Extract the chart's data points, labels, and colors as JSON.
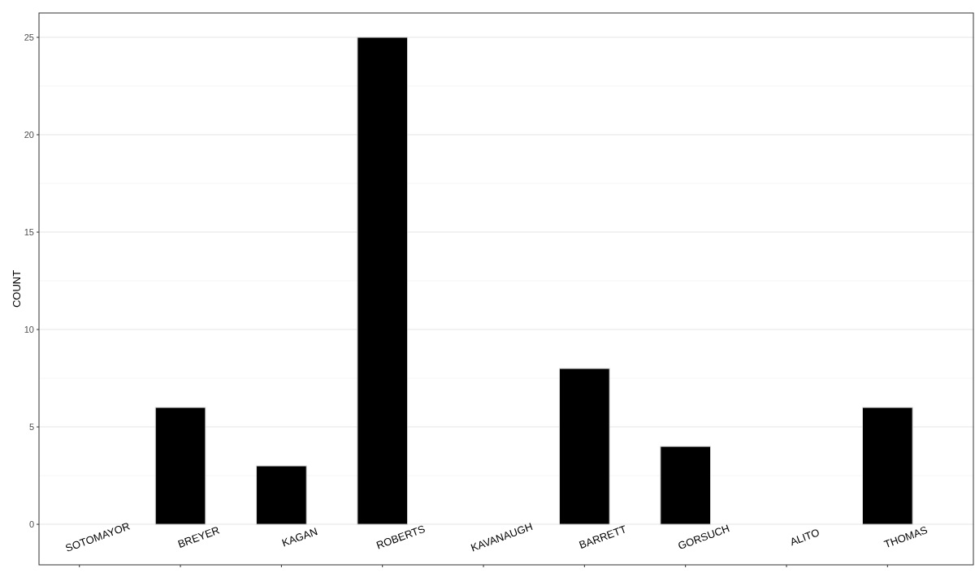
{
  "chart_data": {
    "type": "bar",
    "ylabel": "COUNT",
    "categories": [
      "SOTOMAYOR",
      "BREYER",
      "KAGAN",
      "ROBERTS",
      "KAVANAUGH",
      "BARRETT",
      "GORSUCH",
      "ALITO",
      "THOMAS"
    ],
    "values": [
      0,
      6,
      3,
      25,
      0,
      8,
      4,
      0,
      6
    ],
    "color": "#000000",
    "ylim": [
      -2.08,
      26.25
    ],
    "yticks": [
      0,
      5,
      10,
      15,
      20,
      25
    ],
    "grid": "y"
  }
}
